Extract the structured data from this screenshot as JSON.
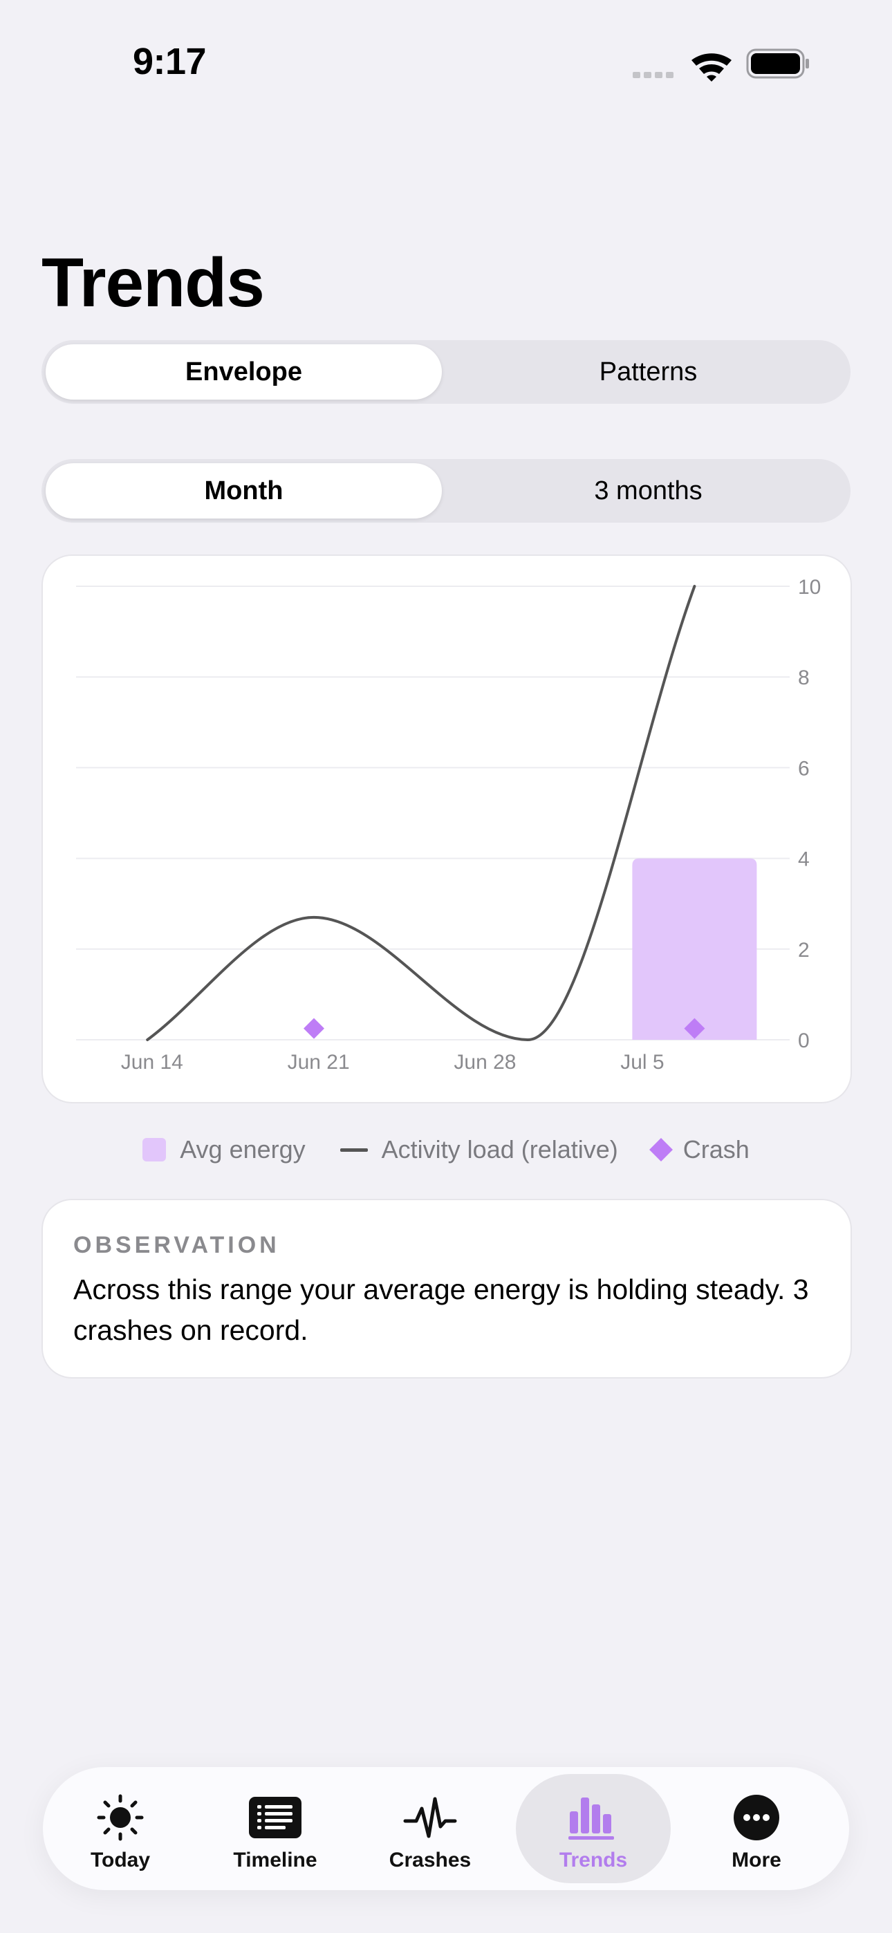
{
  "status_bar": {
    "time": "9:17"
  },
  "page": {
    "title": "Trends"
  },
  "view_selector": {
    "options": [
      "Envelope",
      "Patterns"
    ],
    "selected": "Envelope"
  },
  "range_selector": {
    "options": [
      "Month",
      "3 months"
    ],
    "selected": "Month"
  },
  "colors": {
    "accent": "#b27ded",
    "bar": "#e2c6fb",
    "line": "#555555",
    "crash": "#be7df6",
    "background": "#f2f1f6"
  },
  "chart_data": {
    "type": "bar",
    "x_ticks": [
      "Jun 14",
      "Jun 21",
      "Jun 28",
      "Jul 5"
    ],
    "xlim": [
      "Jun 12",
      "Jul 12"
    ],
    "ylim": [
      0,
      10
    ],
    "y_ticks": [
      0,
      2,
      4,
      6,
      8,
      10
    ],
    "y_axis_position": "right",
    "grid": true,
    "series": [
      {
        "name": "Avg energy",
        "type": "bar",
        "points": [
          {
            "x": "Jul 8",
            "y": 4
          }
        ]
      },
      {
        "name": "Activity load (relative)",
        "type": "line",
        "smooth": true,
        "points": [
          {
            "x": "Jun 15",
            "y": 0
          },
          {
            "x": "Jun 22",
            "y": 2.7
          },
          {
            "x": "Jul 1",
            "y": 0
          },
          {
            "x": "Jul 8",
            "y": 10
          }
        ]
      },
      {
        "name": "Crash",
        "type": "marker",
        "points": [
          {
            "x": "Jun 22",
            "y": 0.25
          },
          {
            "x": "Jul 8",
            "y": 0.25
          }
        ]
      }
    ],
    "legend": [
      "Avg energy",
      "Activity load (relative)",
      "Crash"
    ],
    "legend_position": "bottom"
  },
  "legend": {
    "energy": "Avg energy",
    "activity": "Activity load (relative)",
    "crash": "Crash"
  },
  "observation": {
    "label": "OBSERVATION",
    "text": "Across this range your average energy is holding steady. 3 crashes on record."
  },
  "tab_bar": {
    "today": {
      "label": "Today",
      "icon": "sun-icon"
    },
    "timeline": {
      "label": "Timeline",
      "icon": "list-icon"
    },
    "crashes": {
      "label": "Crashes",
      "icon": "waveform-icon"
    },
    "trends": {
      "label": "Trends",
      "icon": "chart-bar-icon"
    },
    "more": {
      "label": "More",
      "icon": "ellipsis-circle-icon"
    },
    "active": "trends"
  }
}
